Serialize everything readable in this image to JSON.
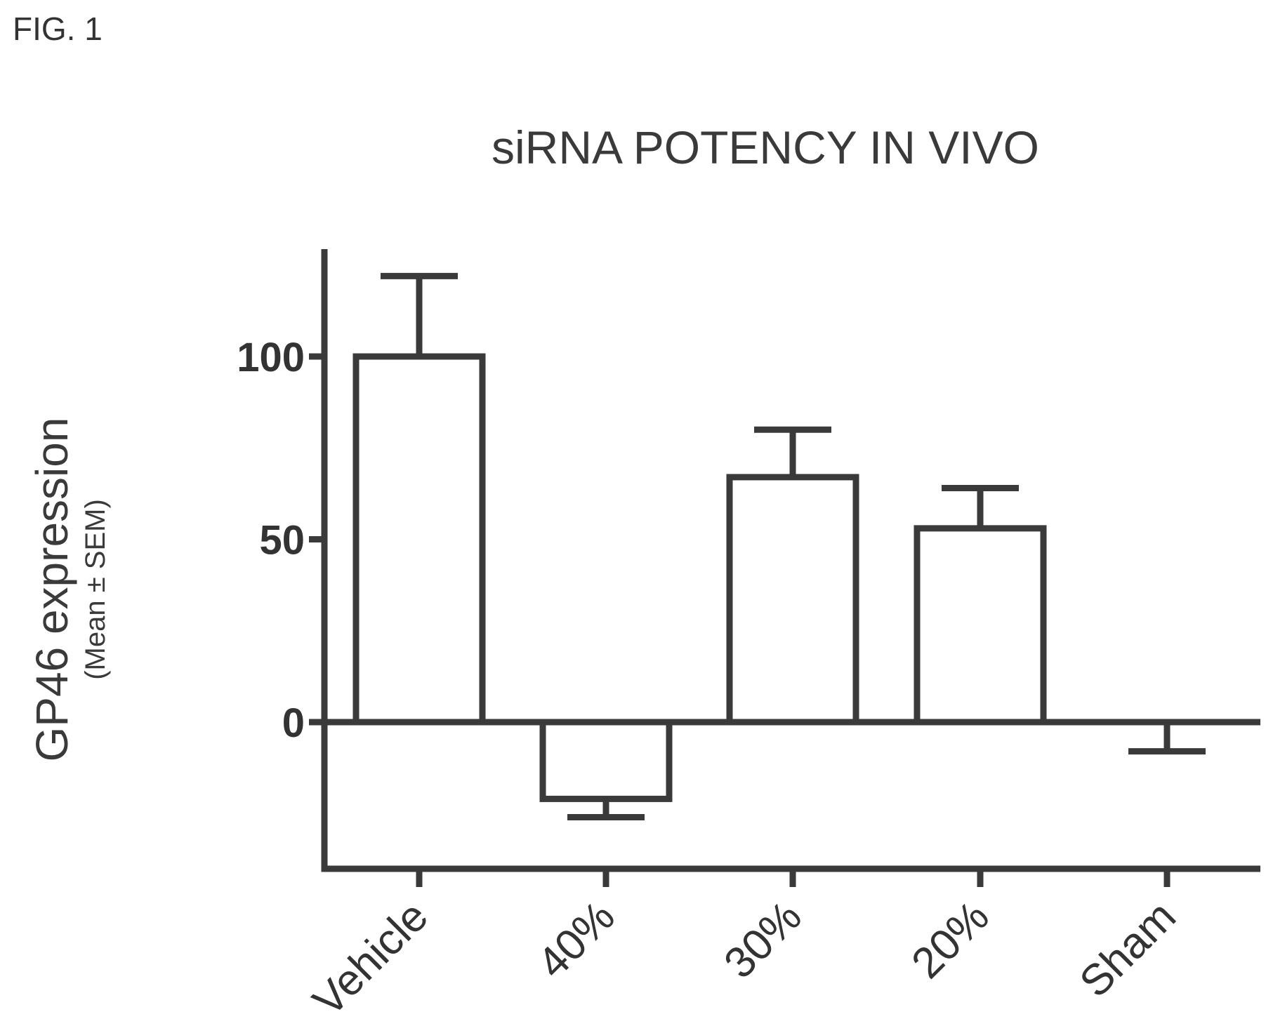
{
  "figure_label": "FIG. 1",
  "chart_data": {
    "type": "bar",
    "title": "siRNA POTENCY IN VIVO",
    "xlabel": "",
    "ylabel": "GP46 expression",
    "ylabel_sub": "(Mean ± SEM)",
    "categories": [
      "Vehicle",
      "40%",
      "30%",
      "20%",
      "Sham"
    ],
    "values": [
      100,
      -21,
      67,
      53,
      0
    ],
    "error": [
      22,
      5,
      13,
      11,
      8
    ],
    "yticks": [
      0,
      50,
      100
    ],
    "ylim": [
      -40,
      130
    ],
    "grid": false,
    "legend": "none",
    "colors": {
      "bar_fill": "#ffffff",
      "stroke": "#3a3a3a"
    }
  }
}
